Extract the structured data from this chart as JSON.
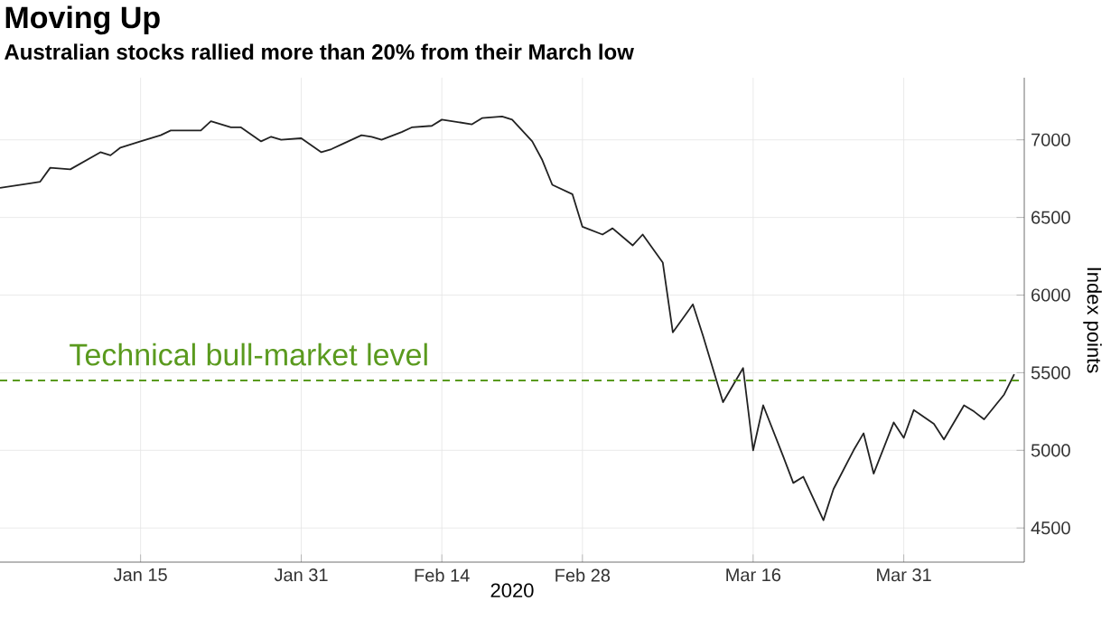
{
  "chart_data": {
    "type": "line",
    "title": "Moving Up",
    "subtitle": "Australian stocks rallied more than 20% from their March low",
    "xlabel": "2020",
    "ylabel": "Index points",
    "series": [
      {
        "color": "#222222",
        "line_style": "solid",
        "x": [
          "2020-01-01",
          "2020-01-04",
          "2020-01-05",
          "2020-01-06",
          "2020-01-08",
          "2020-01-11",
          "2020-01-12",
          "2020-01-13",
          "2020-01-15",
          "2020-01-17",
          "2020-01-18",
          "2020-01-21",
          "2020-01-22",
          "2020-01-24",
          "2020-01-25",
          "2020-01-27",
          "2020-01-28",
          "2020-01-29",
          "2020-01-31",
          "2020-02-02",
          "2020-02-03",
          "2020-02-04",
          "2020-02-06",
          "2020-02-07",
          "2020-02-08",
          "2020-02-10",
          "2020-02-11",
          "2020-02-13",
          "2020-02-14",
          "2020-02-17",
          "2020-02-18",
          "2020-02-20",
          "2020-02-21",
          "2020-02-23",
          "2020-02-24",
          "2020-02-25",
          "2020-02-27",
          "2020-02-28",
          "2020-03-01",
          "2020-03-02",
          "2020-03-04",
          "2020-03-05",
          "2020-03-07",
          "2020-03-08",
          "2020-03-10",
          "2020-03-11",
          "2020-03-13",
          "2020-03-15",
          "2020-03-16",
          "2020-03-17",
          "2020-03-19",
          "2020-03-20",
          "2020-03-21",
          "2020-03-23",
          "2020-03-24",
          "2020-03-26",
          "2020-03-27",
          "2020-03-28",
          "2020-03-30",
          "2020-03-31",
          "2020-04-01",
          "2020-04-03",
          "2020-04-04",
          "2020-04-06",
          "2020-04-07",
          "2020-04-08",
          "2020-04-10",
          "2020-04-11"
        ],
        "values": [
          6690,
          6720,
          6730,
          6820,
          6810,
          6920,
          6900,
          6950,
          6990,
          7030,
          7060,
          7060,
          7120,
          7080,
          7080,
          6990,
          7020,
          7000,
          7010,
          6920,
          6940,
          6970,
          7030,
          7020,
          7000,
          7050,
          7080,
          7090,
          7130,
          7100,
          7140,
          7150,
          7130,
          6990,
          6870,
          6710,
          6650,
          6440,
          6390,
          6430,
          6320,
          6390,
          6210,
          5760,
          5940,
          5740,
          5310,
          5530,
          5000,
          5290,
          4960,
          4790,
          4830,
          4550,
          4750,
          5000,
          5110,
          4850,
          5180,
          5080,
          5260,
          5170,
          5070,
          5290,
          5250,
          5200,
          5360,
          5490
        ]
      }
    ],
    "xlim": [
      "2020-01-01",
      "2020-04-12"
    ],
    "ylim": [
      4280,
      7400
    ],
    "xticks": [
      {
        "value": "2020-01-15",
        "label": "Jan 15"
      },
      {
        "value": "2020-01-31",
        "label": "Jan 31"
      },
      {
        "value": "2020-02-14",
        "label": "Feb 14"
      },
      {
        "value": "2020-02-28",
        "label": "Feb 28"
      },
      {
        "value": "2020-03-16",
        "label": "Mar 16"
      },
      {
        "value": "2020-03-31",
        "label": "Mar 31"
      }
    ],
    "yticks": [
      4500,
      5000,
      5500,
      6000,
      6500,
      7000
    ],
    "ref_lines": [
      {
        "axis": "y",
        "value": 5450,
        "label": "Technical bull-market level",
        "color": "#5a9a1e",
        "line_style": "dashed"
      }
    ],
    "grid": true
  }
}
